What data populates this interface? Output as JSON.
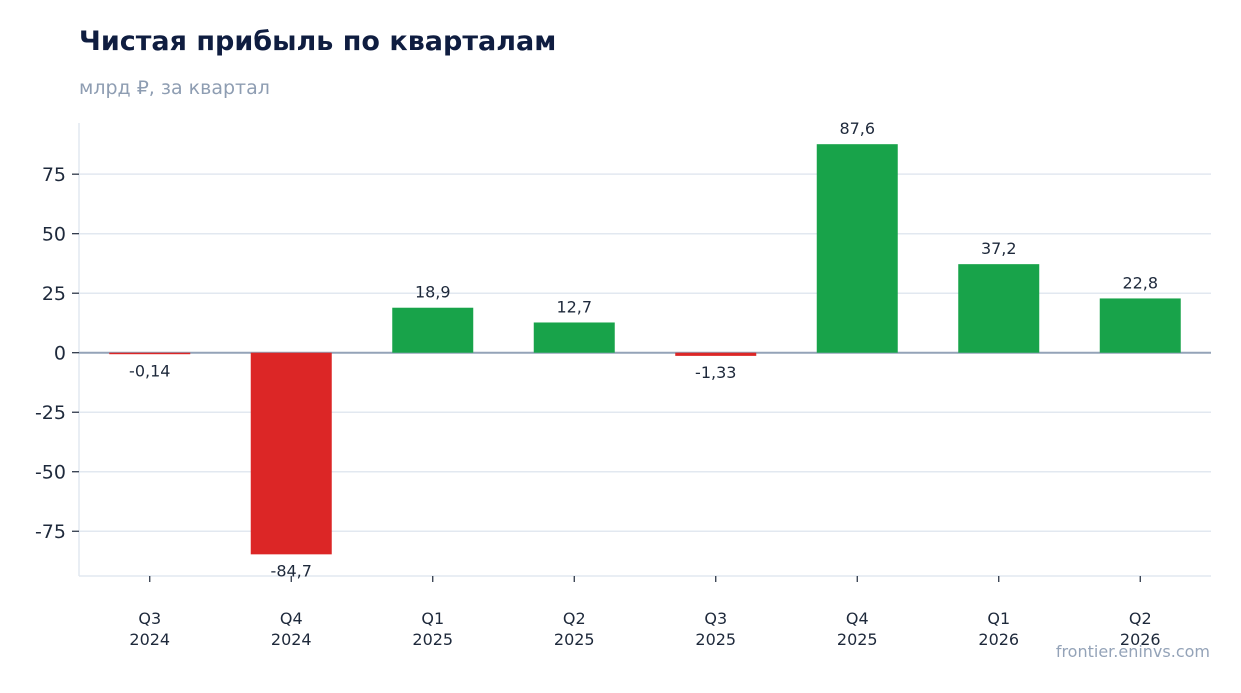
{
  "header": {
    "title": "Чистая прибыль по кварталам",
    "subtitle": "млрд ₽, за квартал"
  },
  "footer": {
    "source": "frontier.eninvs.com"
  },
  "colors": {
    "positive": "#18a34a",
    "negative": "#dc2626",
    "grid": "#e2e8f0",
    "zero_line": "#94a3b8",
    "axis": "#e2e8f0",
    "text": "#1e293b"
  },
  "chart_data": {
    "type": "bar",
    "title": "Чистая прибыль по кварталам",
    "subtitle": "млрд ₽, за квартал",
    "categories": [
      [
        "Q3",
        "2024"
      ],
      [
        "Q4",
        "2024"
      ],
      [
        "Q1",
        "2025"
      ],
      [
        "Q2",
        "2025"
      ],
      [
        "Q3",
        "2025"
      ],
      [
        "Q4",
        "2025"
      ],
      [
        "Q1",
        "2026"
      ],
      [
        "Q2",
        "2026"
      ]
    ],
    "values": [
      -0.14,
      -84.7,
      18.9,
      12.7,
      -1.33,
      87.6,
      37.2,
      22.8
    ],
    "data_labels": [
      "-0,14",
      "-84,7",
      "18,9",
      "12,7",
      "-1,33",
      "87,6",
      "37,2",
      "22,8"
    ],
    "ylim": [
      -93.8,
      96.5
    ],
    "yticks": [
      -75,
      -50,
      -25,
      0,
      25,
      50,
      75
    ],
    "ytick_labels": [
      "-75",
      "-50",
      "-25",
      "0",
      "25",
      "50",
      "75"
    ],
    "grid": true,
    "xlabel": "",
    "ylabel": ""
  }
}
